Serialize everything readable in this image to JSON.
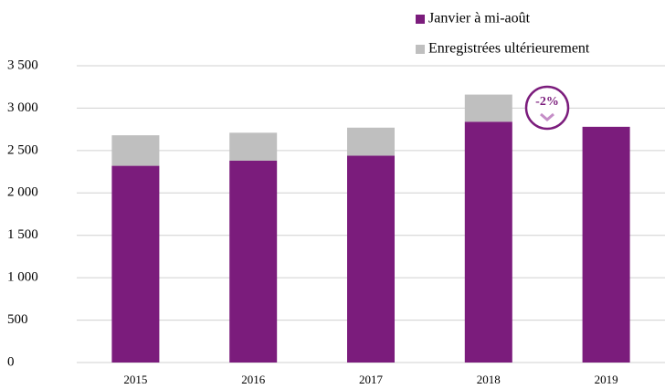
{
  "chart_data": {
    "type": "stacked_bar",
    "categories": [
      "2015",
      "2016",
      "2017",
      "2018",
      "2019"
    ],
    "series": [
      {
        "name": "Janvier à mi-août",
        "color": "#7b1c7c",
        "values": [
          2320,
          2380,
          2440,
          2840,
          2780
        ]
      },
      {
        "name": "Enregistrées ultérieurement",
        "color": "#bfbfbf",
        "values": [
          360,
          330,
          330,
          320,
          null
        ]
      }
    ],
    "ylim": [
      0,
      3500
    ],
    "yticks": [
      0,
      500,
      {
        "value": 1000,
        "label": "1 000"
      },
      {
        "value": 1500,
        "label": "1 500"
      },
      {
        "value": 2000,
        "label": "2 000"
      },
      {
        "value": 2500,
        "label": "2 500"
      },
      {
        "value": 3000,
        "label": "3 000"
      },
      {
        "value": 3500,
        "label": "3 500"
      }
    ],
    "grid": true,
    "legend": "top-right",
    "annotation": "-2%"
  }
}
